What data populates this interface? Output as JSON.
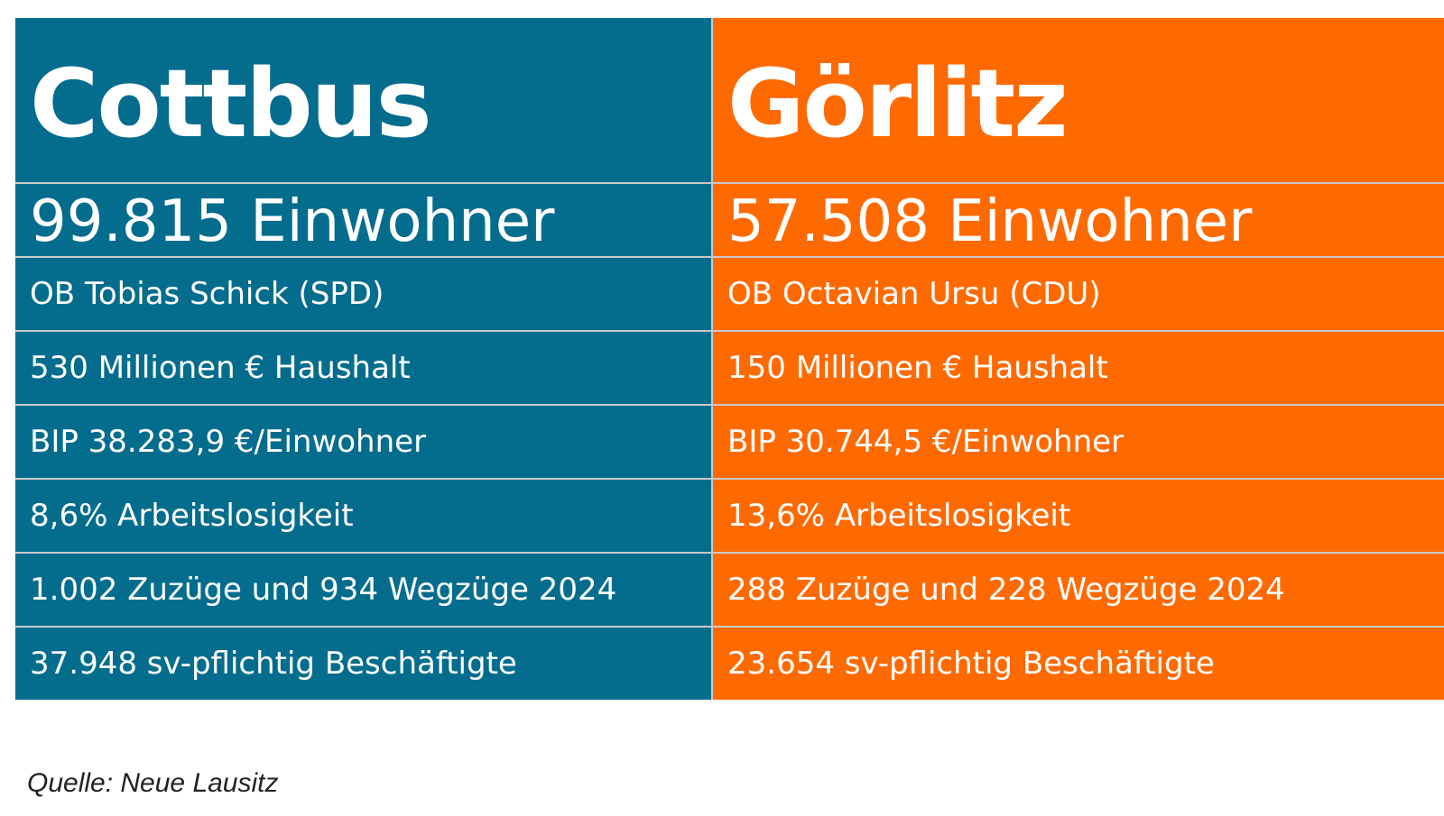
{
  "colors": {
    "cottbus": "#046d8e",
    "goerlitz": "#ff6a00",
    "text": "#ffffff"
  },
  "cottbus": {
    "name": "Cottbus",
    "population": "99.815 Einwohner",
    "mayor": "OB Tobias Schick (SPD)",
    "budget": "530 Millionen € Haushalt",
    "gdp": "BIP 38.283,9 €/Einwohner",
    "unemployment": "8,6% Arbeitslosigkeit",
    "migration": "1.002 Zuzüge und 934 Wegzüge 2024",
    "employees": "37.948 sv-pflichtig Beschäftigte"
  },
  "goerlitz": {
    "name": "Görlitz",
    "population": "57.508 Einwohner",
    "mayor": "OB Octavian Ursu (CDU)",
    "budget": "150 Millionen € Haushalt",
    "gdp": "BIP 30.744,5 €/Einwohner",
    "unemployment": "13,6% Arbeitslosigkeit",
    "migration": "288 Zuzüge und 228 Wegzüge 2024",
    "employees": "23.654 sv-pflichtig Beschäftigte"
  },
  "source": "Quelle: Neue Lausitz"
}
